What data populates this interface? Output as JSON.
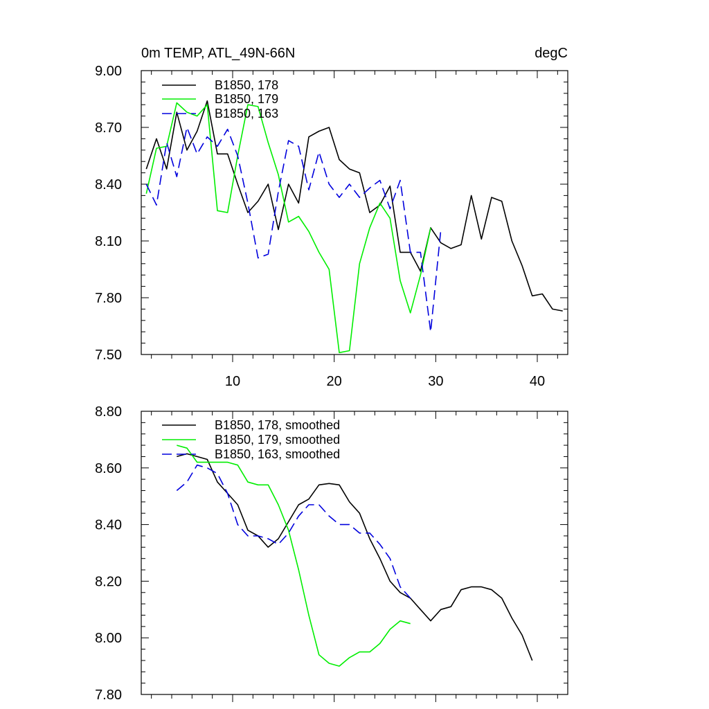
{
  "chart_data": [
    {
      "type": "line",
      "title": "0m TEMP, ATL_49N-66N",
      "units": "degC",
      "xlabel": "",
      "ylabel": "",
      "xlim": [
        1,
        43
      ],
      "ylim": [
        7.5,
        9.0
      ],
      "xticks": [
        10,
        20,
        30,
        40
      ],
      "xtick_labels": [
        "10",
        "20",
        "30",
        "40"
      ],
      "yticks": [
        7.5,
        7.8,
        8.1,
        8.4,
        8.7,
        9.0
      ],
      "ytick_labels": [
        "7.50",
        "7.80",
        "8.10",
        "8.40",
        "8.70",
        "9.00"
      ],
      "legend_position": "top-left",
      "series": [
        {
          "name": "B1850, 178",
          "color": "#000000",
          "dash": "solid",
          "x": [
            1.5,
            2.5,
            3.5,
            4.5,
            5.5,
            6.5,
            7.5,
            8.5,
            9.5,
            10.5,
            11.5,
            12.5,
            13.5,
            14.5,
            15.5,
            16.5,
            17.5,
            18.5,
            19.5,
            20.5,
            21.5,
            22.5,
            23.5,
            24.5,
            25.5,
            26.5,
            27.5,
            28.5,
            29.5,
            30.5,
            31.5,
            32.5,
            33.5,
            34.5,
            35.5,
            36.5,
            37.5,
            38.5,
            39.5,
            40.5,
            41.5,
            42.5
          ],
          "values": [
            8.48,
            8.64,
            8.48,
            8.78,
            8.58,
            8.68,
            8.84,
            8.56,
            8.56,
            8.4,
            8.25,
            8.31,
            8.4,
            8.16,
            8.4,
            8.3,
            8.65,
            8.68,
            8.7,
            8.53,
            8.48,
            8.46,
            8.25,
            8.29,
            8.39,
            8.04,
            8.04,
            7.94,
            8.17,
            8.09,
            8.06,
            8.08,
            8.34,
            8.11,
            8.33,
            8.31,
            8.1,
            7.97,
            7.81,
            7.82,
            7.74,
            7.73
          ]
        },
        {
          "name": "B1850, 179",
          "color": "#00ee00",
          "dash": "solid",
          "x": [
            1.5,
            2.5,
            3.5,
            4.5,
            5.5,
            6.5,
            7.5,
            8.5,
            9.5,
            10.5,
            11.5,
            12.5,
            13.5,
            14.5,
            15.5,
            16.5,
            17.5,
            18.5,
            19.5,
            20.5,
            21.5,
            22.5,
            23.5,
            24.5,
            25.5,
            26.5,
            27.5,
            28.5,
            29.5
          ],
          "values": [
            8.35,
            8.59,
            8.6,
            8.83,
            8.78,
            8.76,
            8.82,
            8.26,
            8.25,
            8.55,
            8.82,
            8.81,
            8.62,
            8.45,
            8.2,
            8.23,
            8.15,
            8.04,
            7.95,
            7.51,
            7.52,
            7.98,
            8.17,
            8.3,
            8.22,
            7.89,
            7.72,
            7.92,
            8.17
          ]
        },
        {
          "name": "B1850, 163",
          "color": "#0000dd",
          "dash": "dashed",
          "x": [
            1.5,
            2.5,
            3.5,
            4.5,
            5.5,
            6.5,
            7.5,
            8.5,
            9.5,
            10.5,
            11.5,
            12.5,
            13.5,
            14.5,
            15.5,
            16.5,
            17.5,
            18.5,
            19.5,
            20.5,
            21.5,
            22.5,
            23.5,
            24.5,
            25.5,
            26.5,
            27.5,
            28.5,
            29.5,
            30.5
          ],
          "values": [
            8.4,
            8.29,
            8.62,
            8.44,
            8.7,
            8.56,
            8.65,
            8.6,
            8.69,
            8.55,
            8.3,
            8.01,
            8.03,
            8.36,
            8.63,
            8.6,
            8.37,
            8.57,
            8.4,
            8.33,
            8.4,
            8.33,
            8.38,
            8.42,
            8.27,
            8.42,
            8.04,
            8.04,
            7.62,
            8.16
          ]
        }
      ]
    },
    {
      "type": "line",
      "title": "",
      "xlabel": "",
      "ylabel": "",
      "xlim": [
        1,
        43
      ],
      "ylim": [
        7.8,
        8.8
      ],
      "xticks": [
        10,
        20,
        30,
        40
      ],
      "xtick_labels": [],
      "yticks": [
        7.8,
        8.0,
        8.2,
        8.4,
        8.6,
        8.8
      ],
      "ytick_labels": [
        "7.80",
        "8.00",
        "8.20",
        "8.40",
        "8.60",
        "8.80"
      ],
      "legend_position": "top-left",
      "series": [
        {
          "name": "B1850, 178, smoothed",
          "color": "#000000",
          "dash": "solid",
          "x": [
            4.5,
            5.5,
            6.5,
            7.5,
            8.5,
            9.5,
            10.5,
            11.5,
            12.5,
            13.5,
            14.5,
            15.5,
            16.5,
            17.5,
            18.5,
            19.5,
            20.5,
            21.5,
            22.5,
            23.5,
            24.5,
            25.5,
            26.5,
            27.5,
            28.5,
            29.5,
            30.5,
            31.5,
            32.5,
            33.5,
            34.5,
            35.5,
            36.5,
            37.5,
            38.5,
            39.5
          ],
          "values": [
            8.64,
            8.65,
            8.64,
            8.63,
            8.55,
            8.51,
            8.47,
            8.38,
            8.36,
            8.32,
            8.35,
            8.41,
            8.47,
            8.49,
            8.54,
            8.545,
            8.54,
            8.48,
            8.44,
            8.35,
            8.28,
            8.2,
            8.16,
            8.14,
            8.1,
            8.06,
            8.1,
            8.11,
            8.17,
            8.18,
            8.18,
            8.17,
            8.14,
            8.07,
            8.01,
            7.92
          ]
        },
        {
          "name": "B1850, 179, smoothed",
          "color": "#00ee00",
          "dash": "solid",
          "x": [
            4.5,
            5.5,
            6.5,
            7.5,
            8.5,
            9.5,
            10.5,
            11.5,
            12.5,
            13.5,
            14.5,
            15.5,
            16.5,
            17.5,
            18.5,
            19.5,
            20.5,
            21.5,
            22.5,
            23.5,
            24.5,
            25.5,
            26.5,
            27.5
          ],
          "values": [
            8.68,
            8.67,
            8.62,
            8.62,
            8.62,
            8.62,
            8.61,
            8.55,
            8.54,
            8.54,
            8.47,
            8.38,
            8.24,
            8.08,
            7.94,
            7.91,
            7.9,
            7.93,
            7.95,
            7.95,
            7.98,
            8.03,
            8.06,
            8.05
          ]
        },
        {
          "name": "B1850, 163, smoothed",
          "color": "#0000dd",
          "dash": "dashed",
          "x": [
            4.5,
            5.5,
            6.5,
            7.5,
            8.5,
            9.5,
            10.5,
            11.5,
            12.5,
            13.5,
            14.5,
            15.5,
            16.5,
            17.5,
            18.5,
            19.5,
            20.5,
            21.5,
            22.5,
            23.5,
            24.5,
            25.5,
            26.5,
            27.5
          ],
          "values": [
            8.52,
            8.55,
            8.61,
            8.6,
            8.58,
            8.51,
            8.4,
            8.36,
            8.36,
            8.35,
            8.33,
            8.37,
            8.43,
            8.47,
            8.47,
            8.43,
            8.4,
            8.4,
            8.37,
            8.37,
            8.33,
            8.28,
            8.18,
            8.14
          ]
        }
      ]
    }
  ]
}
